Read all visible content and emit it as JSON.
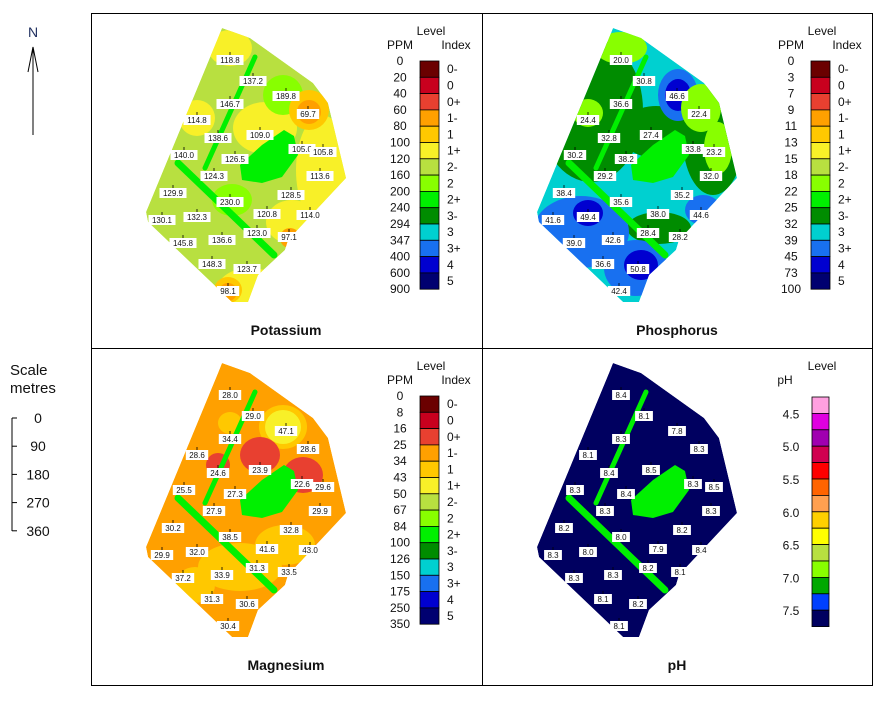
{
  "north_label": "N",
  "scale": {
    "title_line1": "Scale",
    "title_line2": "metres",
    "ticks": [
      "0",
      "90",
      "180",
      "270",
      "360"
    ]
  },
  "legend_common": {
    "level": "Level",
    "ppm": "PPM",
    "index": "Index"
  },
  "index_levels": [
    "0-",
    "0",
    "0+",
    "1-",
    "1",
    "1+",
    "2-",
    "2",
    "2+",
    "3-",
    "3",
    "3+",
    "4",
    "5"
  ],
  "index_colors": [
    "#6b0000",
    "#c8001e",
    "#e84030",
    "#ffa000",
    "#ffc800",
    "#f8f028",
    "#b8e040",
    "#88ff00",
    "#00f000",
    "#008c00",
    "#00d0d0",
    "#1870f0",
    "#0000d0",
    "#000070"
  ],
  "panels": [
    {
      "title": "Potassium",
      "ppm": [
        "0",
        "20",
        "40",
        "60",
        "80",
        "100",
        "120",
        "160",
        "200",
        "240",
        "294",
        "347",
        "400",
        "600",
        "900"
      ],
      "samples": [
        "118.8",
        "137.2",
        "189.8",
        "69.7",
        "146.7",
        "114.8",
        "138.6",
        "109.0",
        "105.0",
        "105.8",
        "140.0",
        "126.5",
        "124.3",
        "113.6",
        "128.5",
        "129.9",
        "230.0",
        "120.8",
        "114.0",
        "130.1",
        "132.3",
        "123.0",
        "97.1",
        "145.8",
        "136.6",
        "148.3",
        "123.7",
        "98.1"
      ]
    },
    {
      "title": "Phosphorus",
      "ppm": [
        "0",
        "3",
        "7",
        "9",
        "11",
        "13",
        "15",
        "18",
        "22",
        "25",
        "32",
        "39",
        "45",
        "73",
        "100"
      ],
      "samples": [
        "20.0",
        "30.8",
        "46.6",
        "22.4",
        "36.6",
        "24.4",
        "32.8",
        "27.4",
        "33.8",
        "23.2",
        "30.2",
        "38.2",
        "29.2",
        "32.0",
        "35.2",
        "38.4",
        "35.6",
        "38.0",
        "44.6",
        "41.6",
        "49.4",
        "28.4",
        "28.2",
        "39.0",
        "42.6",
        "36.6",
        "50.8",
        "42.4"
      ]
    },
    {
      "title": "Magnesium",
      "ppm": [
        "0",
        "8",
        "16",
        "25",
        "34",
        "43",
        "50",
        "67",
        "84",
        "100",
        "126",
        "150",
        "175",
        "250",
        "350"
      ],
      "samples": [
        "28.0",
        "29.0",
        "47.1",
        "28.6",
        "34.4",
        "28.6",
        "24.6",
        "23.9",
        "22.6",
        "29.6",
        "25.5",
        "27.3",
        "27.9",
        "29.9",
        "32.8",
        "30.2",
        "38.5",
        "41.6",
        "43.0",
        "29.9",
        "32.0",
        "31.3",
        "33.5",
        "37.2",
        "33.9",
        "31.3",
        "30.6",
        "30.4"
      ]
    },
    {
      "title": "pH",
      "ph_unit": "pH",
      "ph_labels": [
        "4.5",
        "5.0",
        "5.5",
        "6.0",
        "6.5",
        "7.0",
        "7.5"
      ],
      "ph_colors": [
        "#ffa0e0",
        "#e000e0",
        "#a000b0",
        "#d00050",
        "#ff0000",
        "#ff6400",
        "#ffa050",
        "#ffd000",
        "#ffff00",
        "#b8e040",
        "#88ff00",
        "#00a800",
        "#0040ff",
        "#000060"
      ],
      "samples": [
        "8.4",
        "8.1",
        "7.8",
        "8.3",
        "8.3",
        "8.1",
        "8.4",
        "8.5",
        "8.3",
        "8.5",
        "8.3",
        "8.4",
        "8.3",
        "8.3",
        "8.2",
        "8.2",
        "8.0",
        "7.9",
        "8.4",
        "8.3",
        "8.0",
        "8.2",
        "8.1",
        "8.3",
        "8.3",
        "8.1",
        "8.2",
        "8.1"
      ]
    }
  ]
}
